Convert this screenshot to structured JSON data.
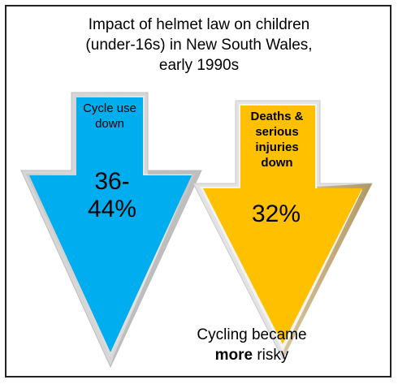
{
  "title": "Impact of helmet law on children\n(under-16s) in New South Wales,\nearly 1990s",
  "left_arrow": {
    "label": "Cycle use\ndown",
    "value": "36-\n44%",
    "color": "#00aeef"
  },
  "right_arrow": {
    "label": "Deaths &\nserious\ninjuries\ndown",
    "value": "32%",
    "color": "#ffc000"
  },
  "caption": {
    "line1": "Cycling became",
    "emphasis": "more",
    "rest": " risky"
  }
}
